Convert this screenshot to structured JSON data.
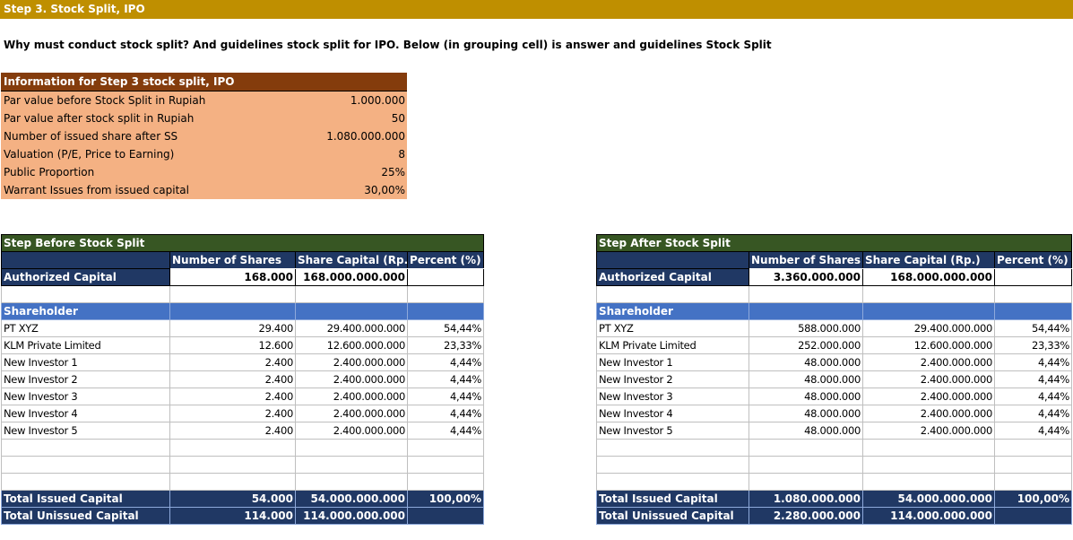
{
  "banner": "Step 3. Stock Split, IPO",
  "question": "Why must conduct stock split? And guidelines stock split for IPO. Below (in grouping cell) is answer and guidelines Stock Split",
  "info": {
    "title": "Information for Step 3 stock split, IPO",
    "rows": [
      {
        "label": "Par value before Stock Split in Rupiah",
        "value": "1.000.000"
      },
      {
        "label": "Par value after stock split in Rupiah",
        "value": "50"
      },
      {
        "label": "Number of issued share after SS",
        "value": "1.080.000.000"
      },
      {
        "label": "Valuation (P/E, Price to Earning)",
        "value": "8"
      },
      {
        "label": "Public Proportion",
        "value": "25%"
      },
      {
        "label": "Warrant Issues from issued capital",
        "value": "30,00%"
      }
    ]
  },
  "before": {
    "title": "Step Before Stock Split",
    "col_shares": "Number of Shares",
    "col_capital": "Share Capital (Rp.)",
    "col_percent": "Percent (%)",
    "authorized_label": "Authorized Capital",
    "authorized_shares": "168.000",
    "authorized_capital": "168.000.000.000",
    "shareholder_label": "Shareholder",
    "rows": [
      {
        "name": "PT XYZ",
        "shares": "29.400",
        "capital": "29.400.000.000",
        "percent": "54,44%"
      },
      {
        "name": "KLM Private Limited",
        "shares": "12.600",
        "capital": "12.600.000.000",
        "percent": "23,33%"
      },
      {
        "name": "New Investor 1",
        "shares": "2.400",
        "capital": "2.400.000.000",
        "percent": "4,44%"
      },
      {
        "name": "New Investor 2",
        "shares": "2.400",
        "capital": "2.400.000.000",
        "percent": "4,44%"
      },
      {
        "name": "New Investor 3",
        "shares": "2.400",
        "capital": "2.400.000.000",
        "percent": "4,44%"
      },
      {
        "name": "New Investor 4",
        "shares": "2.400",
        "capital": "2.400.000.000",
        "percent": "4,44%"
      },
      {
        "name": "New Investor 5",
        "shares": "2.400",
        "capital": "2.400.000.000",
        "percent": "4,44%"
      }
    ],
    "issued_label": "Total Issued Capital",
    "issued_shares": "54.000",
    "issued_capital": "54.000.000.000",
    "issued_percent": "100,00%",
    "unissued_label": "Total Unissued Capital",
    "unissued_shares": "114.000",
    "unissued_capital": "114.000.000.000"
  },
  "after": {
    "title": "Step After Stock Split",
    "col_shares": "Number of Shares",
    "col_capital": "Share Capital (Rp.)",
    "col_percent": "Percent (%)",
    "authorized_label": "Authorized Capital",
    "authorized_shares": "3.360.000.000",
    "authorized_capital": "168.000.000.000",
    "shareholder_label": "Shareholder",
    "rows": [
      {
        "name": "PT XYZ",
        "shares": "588.000.000",
        "capital": "29.400.000.000",
        "percent": "54,44%"
      },
      {
        "name": "KLM Private Limited",
        "shares": "252.000.000",
        "capital": "12.600.000.000",
        "percent": "23,33%"
      },
      {
        "name": "New Investor 1",
        "shares": "48.000.000",
        "capital": "2.400.000.000",
        "percent": "4,44%"
      },
      {
        "name": "New Investor 2",
        "shares": "48.000.000",
        "capital": "2.400.000.000",
        "percent": "4,44%"
      },
      {
        "name": "New Investor 3",
        "shares": "48.000.000",
        "capital": "2.400.000.000",
        "percent": "4,44%"
      },
      {
        "name": "New Investor 4",
        "shares": "48.000.000",
        "capital": "2.400.000.000",
        "percent": "4,44%"
      },
      {
        "name": "New Investor 5",
        "shares": "48.000.000",
        "capital": "2.400.000.000",
        "percent": "4,44%"
      }
    ],
    "issued_label": "Total Issued Capital",
    "issued_shares": "1.080.000.000",
    "issued_capital": "54.000.000.000",
    "issued_percent": "100,00%",
    "unissued_label": "Total Unissued Capital",
    "unissued_shares": "2.280.000.000",
    "unissued_capital": "114.000.000.000"
  },
  "colors": {
    "banner": "#bf8f00",
    "info_header": "#843c0c",
    "info_body": "#f4b183",
    "table_title": "#375623",
    "navy": "#203864",
    "blue": "#4472c4"
  }
}
